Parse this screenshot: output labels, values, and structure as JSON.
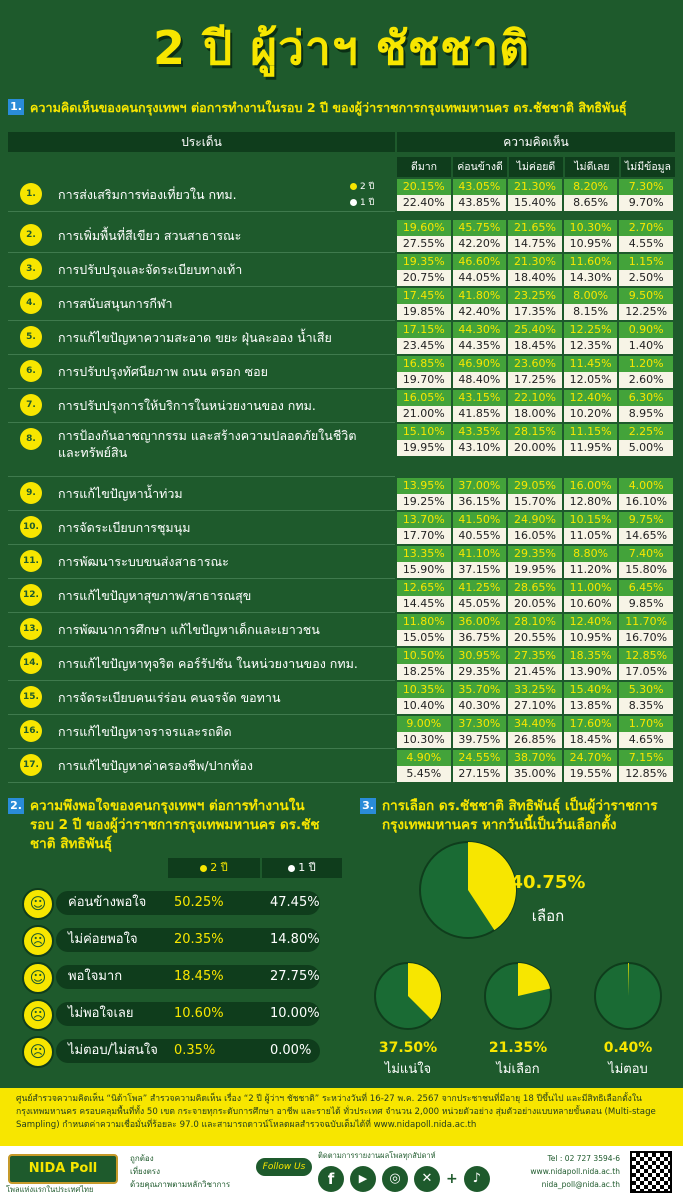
{
  "title": "2 ปี ผู้ว่าฯ ชัชชาติ",
  "section1": {
    "num": "1.",
    "heading": "ความคิดเห็นของคนกรุงเทพฯ ต่อการทำงานในรอบ 2 ปี ของผู้ว่าราชการกรุงเทพมหานคร ดร.ชัชชาติ สิทธิพันธุ์",
    "col_issue": "ประเด็น",
    "col_opinion": "ความคิดเห็น",
    "columns": [
      "ดีมาก",
      "ค่อนข้างดี",
      "ไม่ค่อยดี",
      "ไม่ดีเลย",
      "ไม่มีข้อมูล"
    ],
    "legend_2yr": "2 ปี",
    "legend_1yr": "1 ปี"
  },
  "chart_data": [
    {
      "type": "table",
      "categories": [
        "ดีมาก",
        "ค่อนข้างดี",
        "ไม่ค่อยดี",
        "ไม่ดีเลย",
        "ไม่มีข้อมูล"
      ],
      "rows": [
        {
          "num": "1.",
          "label": "การส่งเสริมการท่องเที่ยวใน กทม.",
          "y2": [
            "20.15%",
            "43.05%",
            "21.30%",
            "8.20%",
            "7.30%"
          ],
          "y1": [
            "22.40%",
            "43.85%",
            "15.40%",
            "8.65%",
            "9.70%"
          ]
        },
        {
          "num": "2.",
          "label": "การเพิ่มพื้นที่สีเขียว สวนสาธารณะ",
          "y2": [
            "19.60%",
            "45.75%",
            "21.65%",
            "10.30%",
            "2.70%"
          ],
          "y1": [
            "27.55%",
            "42.20%",
            "14.75%",
            "10.95%",
            "4.55%"
          ]
        },
        {
          "num": "3.",
          "label": "การปรับปรุงและจัดระเบียบทางเท้า",
          "y2": [
            "19.35%",
            "46.60%",
            "21.30%",
            "11.60%",
            "1.15%"
          ],
          "y1": [
            "20.75%",
            "44.05%",
            "18.40%",
            "14.30%",
            "2.50%"
          ]
        },
        {
          "num": "4.",
          "label": "การสนับสนุนการกีฬา",
          "y2": [
            "17.45%",
            "41.80%",
            "23.25%",
            "8.00%",
            "9.50%"
          ],
          "y1": [
            "19.85%",
            "42.40%",
            "17.35%",
            "8.15%",
            "12.25%"
          ]
        },
        {
          "num": "5.",
          "label": "การแก้ไขปัญหาความสะอาด ขยะ ฝุ่นละออง น้ำเสีย",
          "y2": [
            "17.15%",
            "44.30%",
            "25.40%",
            "12.25%",
            "0.90%"
          ],
          "y1": [
            "23.45%",
            "44.35%",
            "18.45%",
            "12.35%",
            "1.40%"
          ]
        },
        {
          "num": "6.",
          "label": "การปรับปรุงทัศนียภาพ ถนน ตรอก ซอย",
          "y2": [
            "16.85%",
            "46.90%",
            "23.60%",
            "11.45%",
            "1.20%"
          ],
          "y1": [
            "19.70%",
            "48.40%",
            "17.25%",
            "12.05%",
            "2.60%"
          ]
        },
        {
          "num": "7.",
          "label": "การปรับปรุงการให้บริการในหน่วยงานของ กทม.",
          "y2": [
            "16.05%",
            "43.15%",
            "22.10%",
            "12.40%",
            "6.30%"
          ],
          "y1": [
            "21.00%",
            "41.85%",
            "18.00%",
            "10.20%",
            "8.95%"
          ]
        },
        {
          "num": "8.",
          "label": "การป้องกันอาชญากรรม และสร้างความปลอดภัยในชีวิตและทรัพย์สิน",
          "y2": [
            "15.10%",
            "43.35%",
            "28.15%",
            "11.15%",
            "2.25%"
          ],
          "y1": [
            "19.95%",
            "43.10%",
            "20.00%",
            "11.95%",
            "5.00%"
          ]
        },
        {
          "num": "9.",
          "label": "การแก้ไขปัญหาน้ำท่วม",
          "y2": [
            "13.95%",
            "37.00%",
            "29.05%",
            "16.00%",
            "4.00%"
          ],
          "y1": [
            "19.25%",
            "36.15%",
            "15.70%",
            "12.80%",
            "16.10%"
          ]
        },
        {
          "num": "10.",
          "label": "การจัดระเบียบการชุมนุม",
          "y2": [
            "13.70%",
            "41.50%",
            "24.90%",
            "10.15%",
            "9.75%"
          ],
          "y1": [
            "17.70%",
            "40.55%",
            "16.05%",
            "11.05%",
            "14.65%"
          ]
        },
        {
          "num": "11.",
          "label": "การพัฒนาระบบขนส่งสาธารณะ",
          "y2": [
            "13.35%",
            "41.10%",
            "29.35%",
            "8.80%",
            "7.40%"
          ],
          "y1": [
            "15.90%",
            "37.15%",
            "19.95%",
            "11.20%",
            "15.80%"
          ]
        },
        {
          "num": "12.",
          "label": "การแก้ไขปัญหาสุขภาพ/สาธารณสุข",
          "y2": [
            "12.65%",
            "41.25%",
            "28.65%",
            "11.00%",
            "6.45%"
          ],
          "y1": [
            "14.45%",
            "45.05%",
            "20.05%",
            "10.60%",
            "9.85%"
          ]
        },
        {
          "num": "13.",
          "label": "การพัฒนาการศึกษา แก้ไขปัญหาเด็กและเยาวชน",
          "y2": [
            "11.80%",
            "36.00%",
            "28.10%",
            "12.40%",
            "11.70%"
          ],
          "y1": [
            "15.05%",
            "36.75%",
            "20.55%",
            "10.95%",
            "16.70%"
          ]
        },
        {
          "num": "14.",
          "label": "การแก้ไขปัญหาทุจริต คอร์รัปชัน ในหน่วยงานของ กทม.",
          "y2": [
            "10.50%",
            "30.95%",
            "27.35%",
            "18.35%",
            "12.85%"
          ],
          "y1": [
            "18.25%",
            "29.35%",
            "21.45%",
            "13.90%",
            "17.05%"
          ]
        },
        {
          "num": "15.",
          "label": "การจัดระเบียบคนเร่ร่อน คนจรจัด ขอทาน",
          "y2": [
            "10.35%",
            "35.70%",
            "33.25%",
            "15.40%",
            "5.30%"
          ],
          "y1": [
            "10.40%",
            "40.30%",
            "27.10%",
            "13.85%",
            "8.35%"
          ]
        },
        {
          "num": "16.",
          "label": "การแก้ไขปัญหาจราจรและรถติด",
          "y2": [
            "9.00%",
            "37.30%",
            "34.40%",
            "17.60%",
            "1.70%"
          ],
          "y1": [
            "10.30%",
            "39.75%",
            "26.85%",
            "18.45%",
            "4.65%"
          ]
        },
        {
          "num": "17.",
          "label": "การแก้ไขปัญหาค่าครองชีพ/ปากท้อง",
          "y2": [
            "4.90%",
            "24.55%",
            "38.70%",
            "24.70%",
            "7.15%"
          ],
          "y1": [
            "5.45%",
            "27.15%",
            "35.00%",
            "19.55%",
            "12.85%"
          ]
        }
      ]
    },
    {
      "type": "table",
      "series": [
        {
          "name": "2 ปี"
        },
        {
          "name": "1 ปี"
        }
      ],
      "rows": [
        {
          "label": "ค่อนข้างพอใจ",
          "y2": "50.25%",
          "y1": "47.45%"
        },
        {
          "label": "ไม่ค่อยพอใจ",
          "y2": "20.35%",
          "y1": "14.80%"
        },
        {
          "label": "พอใจมาก",
          "y2": "18.45%",
          "y1": "27.75%"
        },
        {
          "label": "ไม่พอใจเลย",
          "y2": "10.60%",
          "y1": "10.00%"
        },
        {
          "label": "ไม่ตอบ/ไม่สนใจ",
          "y2": "0.35%",
          "y1": "0.00%"
        }
      ]
    },
    {
      "type": "pie",
      "slices": [
        {
          "label": "เลือก",
          "value": 40.75,
          "display": "40.75%"
        },
        {
          "label": "ไม่แน่ใจ",
          "value": 37.5,
          "display": "37.50%"
        },
        {
          "label": "ไม่เลือก",
          "value": 21.35,
          "display": "21.35%"
        },
        {
          "label": "ไม่ตอบ",
          "value": 0.4,
          "display": "0.40%"
        }
      ]
    }
  ],
  "section2": {
    "num": "2.",
    "heading": "ความพึงพอใจของคนกรุงเทพฯ ต่อการทำงานในรอบ 2 ปี ของผู้ว่าราชการกรุงเทพมหานคร ดร.ชัชชาติ สิทธิพันธุ์",
    "legend_2yr": "2 ปี",
    "legend_1yr": "1 ปี"
  },
  "section3": {
    "num": "3.",
    "heading": "การเลือก ดร.ชัชชาติ สิทธิพันธุ์ เป็นผู้ว่าราชการกรุงเทพมหานคร หากวันนี้เป็นวันเลือกตั้ง"
  },
  "footer": {
    "note": "ศูนย์สำรวจความคิดเห็น “นิด้าโพล” สำรวจความคิดเห็น เรื่อง “2 ปี ผู้ว่าฯ ชัชชาติ” ระหว่างวันที่ 16-27 พ.ค. 2567 จากประชาชนที่มีอายุ 18 ปีขึ้นไป และมีสิทธิเลือกตั้งในกรุงเทพมหานคร ครอบคลุมพื้นที่ทั้ง 50 เขต กระจายทุกระดับการศึกษา อาชีพ และรายได้ ทั่วประเทศ จำนวน 2,000 หน่วยตัวอย่าง สุ่มตัวอย่างแบบหลายขั้นตอน (Multi-stage Sampling) กำหนดค่าความเชื่อมั่นที่ร้อยละ 97.0 และสามารถดาวน์โหลดผลสำรวจฉบับเต็มได้ที่ www.nidapoll.nida.ac.th",
    "logo_text": "NIDA Poll",
    "tagline": "โพลแห่งแรกในประเทศไทย",
    "motto": [
      "ถูกต้อง",
      "เที่ยงตรง",
      "ด้วยคุณภาพตามหลักวิชาการ"
    ],
    "follow_us": "Follow Us",
    "follow_caption": "ติดตามการรายงานผลโพลทุกสัปดาห์",
    "tel": "Tel : 02 727 3594-6",
    "web": "www.nidapoll.nida.ac.th",
    "email": "nida_poll@nida.ac.th"
  }
}
